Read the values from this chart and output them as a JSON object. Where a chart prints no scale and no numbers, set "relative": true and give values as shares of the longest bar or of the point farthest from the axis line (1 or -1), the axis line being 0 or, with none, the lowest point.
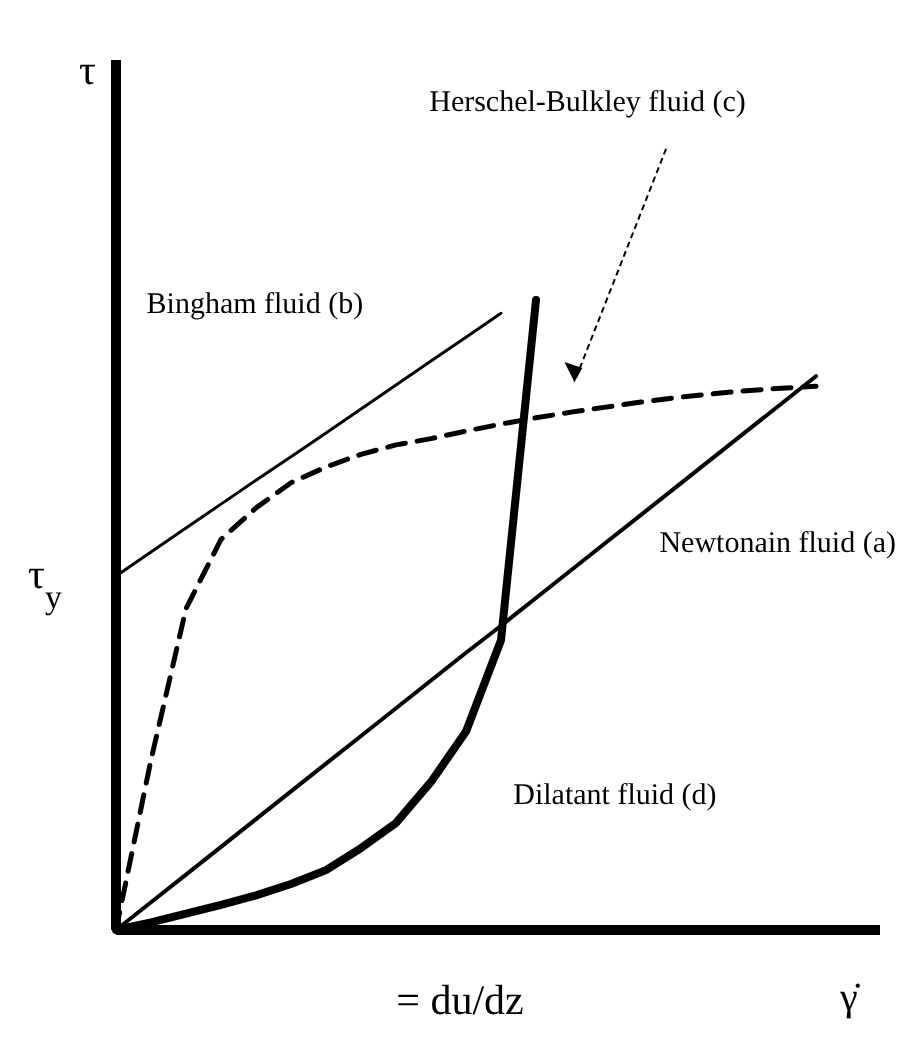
{
  "chart_data": {
    "type": "line",
    "relative": true,
    "xlabel": "γ̇",
    "marker": "none",
    "categories": [
      null,
      null,
      null,
      null,
      null,
      null,
      null,
      null,
      null,
      null,
      null,
      null,
      null,
      null,
      null,
      null,
      null,
      null,
      null,
      null,
      null
    ],
    "annotations": [
      "τ$_{y}$",
      "= du/dz",
      "τ"
    ],
    "series": [
      {
        "name": "Newtonain fluid (a)",
        "color": "#000000",
        "line_style": "solid",
        "values": [
          0,
          0.044,
          0.088,
          0.132,
          0.176,
          0.22,
          0.264,
          0.308,
          0.352,
          0.396,
          0.44,
          0.483,
          0.527,
          0.571,
          0.615,
          0.659,
          0.703,
          0.747,
          0.791,
          0.835,
          0.879
        ]
      },
      {
        "name": "Bingham fluid (b)",
        "color": "#000000",
        "line_style": "solid",
        "values": [
          0.562,
          0.6,
          0.638,
          0.676,
          0.714,
          0.751,
          0.789,
          0.827,
          0.865,
          0.903,
          0.941,
          0.979,
          null,
          null,
          null,
          null,
          null,
          null,
          null,
          null,
          null
        ]
      },
      {
        "name": "Herschel-Bulkley fluid (c)",
        "color": "#000000",
        "line_style": "dashed",
        "values": [
          0,
          0.27,
          0.51,
          0.62,
          0.67,
          0.71,
          0.735,
          0.755,
          0.77,
          0.78,
          0.792,
          0.803,
          0.813,
          0.822,
          0.83,
          0.838,
          0.845,
          0.851,
          0.856,
          0.86,
          0.863
        ]
      },
      {
        "name": "Dilatant fluid (d)",
        "color": "#000000",
        "line_style": "solid",
        "values": [
          0,
          0.012,
          0.026,
          0.04,
          0.055,
          0.073,
          0.095,
          0.13,
          0.17,
          0.235,
          0.315,
          0.46,
          1,
          null,
          null,
          null,
          null,
          null,
          null,
          null,
          null
        ]
      }
    ]
  }
}
